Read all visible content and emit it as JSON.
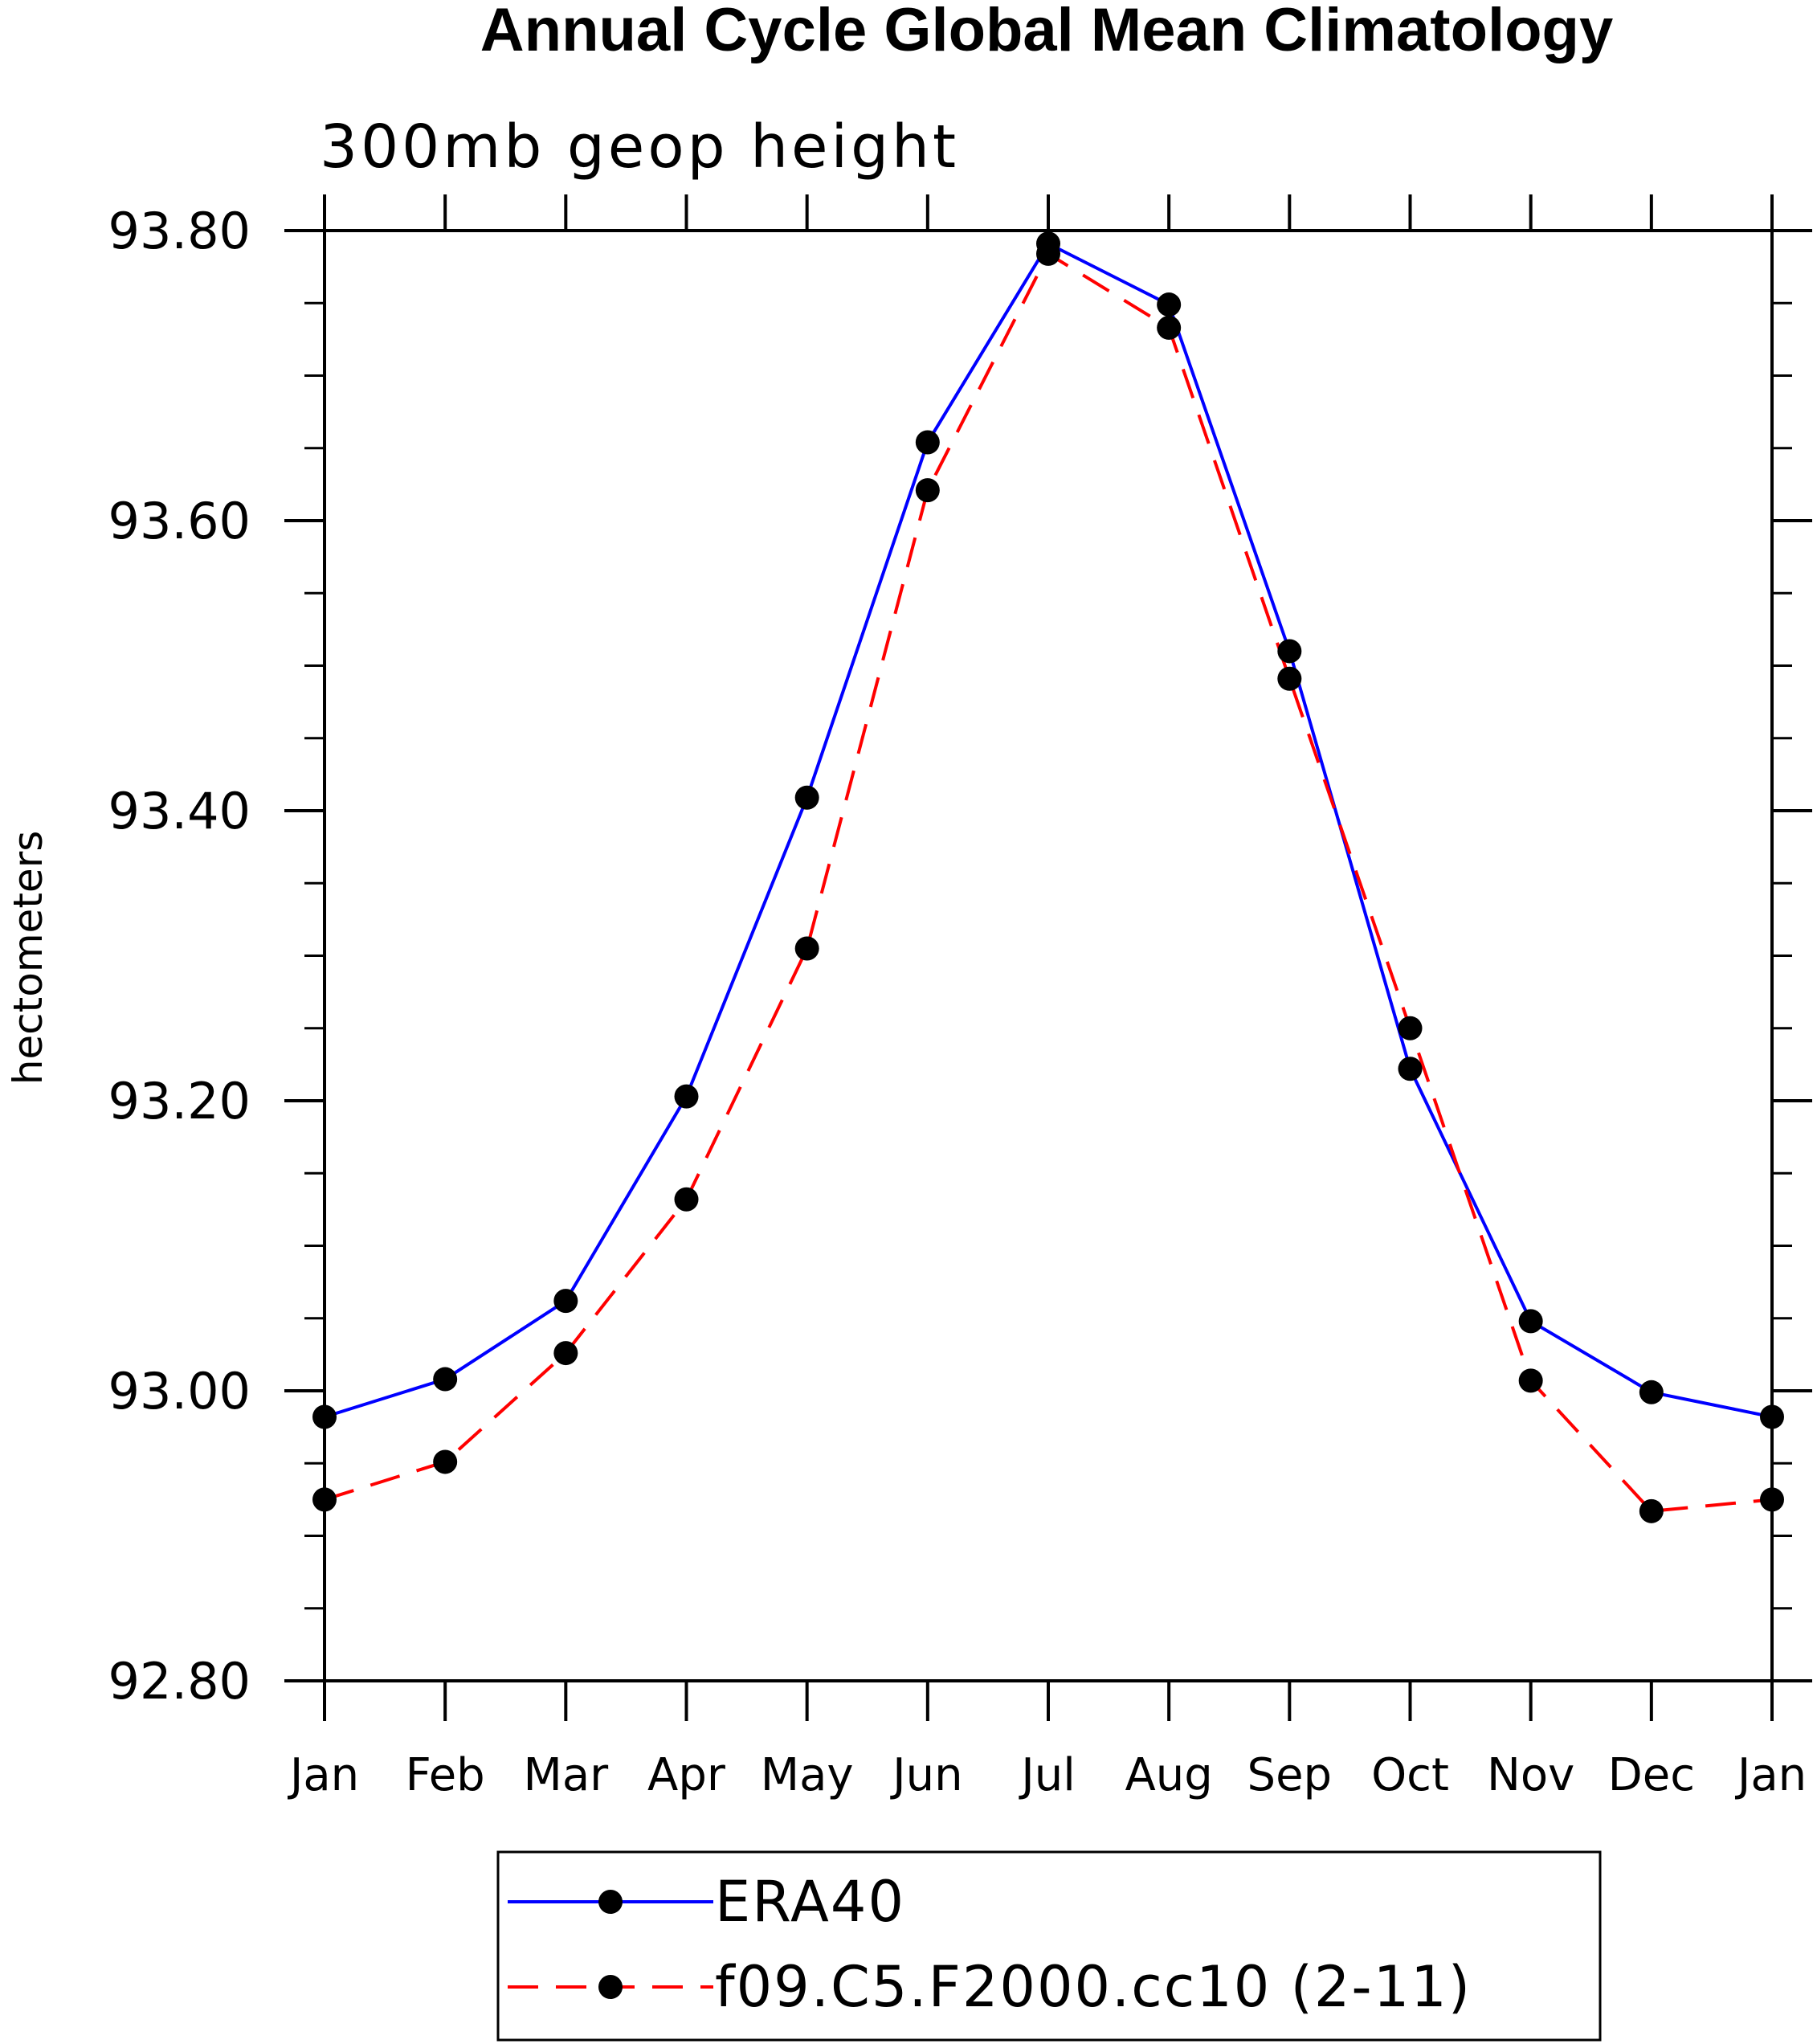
{
  "chart_data": {
    "type": "line",
    "title": "Annual Cycle Global Mean Climatology",
    "subtitle": "300mb geop height",
    "ylabel": "hectometers",
    "xlabel": "",
    "categories": [
      "Jan",
      "Feb",
      "Mar",
      "Apr",
      "May",
      "Jun",
      "Jul",
      "Aug",
      "Sep",
      "Oct",
      "Nov",
      "Dec",
      "Jan"
    ],
    "ylim": [
      92.8,
      93.8
    ],
    "yticks": [
      92.8,
      93.0,
      93.2,
      93.4,
      93.6,
      93.8
    ],
    "ytick_labels": [
      "92.80",
      "93.00",
      "93.20",
      "93.40",
      "93.60",
      "93.80"
    ],
    "y_minor_step": 0.05,
    "grid": false,
    "legend_position": "bottom-center",
    "series": [
      {
        "name": "ERA40",
        "color": "#0000ff",
        "line_style": "solid",
        "marker": "filled-circle",
        "values": [
          92.982,
          93.008,
          93.062,
          93.203,
          93.409,
          93.654,
          93.791,
          93.749,
          93.51,
          93.222,
          93.048,
          92.999,
          92.982
        ]
      },
      {
        "name": "f09.C5.F2000.cc10 (2-11)",
        "color": "#ff0000",
        "line_style": "dashed",
        "marker": "filled-circle",
        "values": [
          92.925,
          92.951,
          93.026,
          93.132,
          93.305,
          93.621,
          93.784,
          93.733,
          93.491,
          93.25,
          93.007,
          92.917,
          92.925
        ]
      }
    ]
  }
}
